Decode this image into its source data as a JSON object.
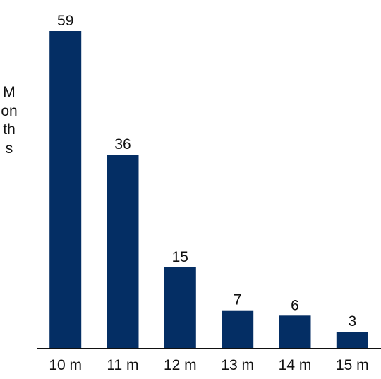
{
  "chart_data": {
    "type": "bar",
    "categories": [
      "10 m",
      "11 m",
      "12 m",
      "13 m",
      "14 m",
      "15 m"
    ],
    "values": [
      59,
      36,
      15,
      7,
      6,
      3
    ],
    "title": "",
    "xlabel": "",
    "ylabel": "Months",
    "ylim": [
      0,
      59
    ],
    "grid": false,
    "data_labels": true,
    "colors": {
      "bar": "#042e64",
      "text": "#111111",
      "axis": "#111111"
    }
  }
}
